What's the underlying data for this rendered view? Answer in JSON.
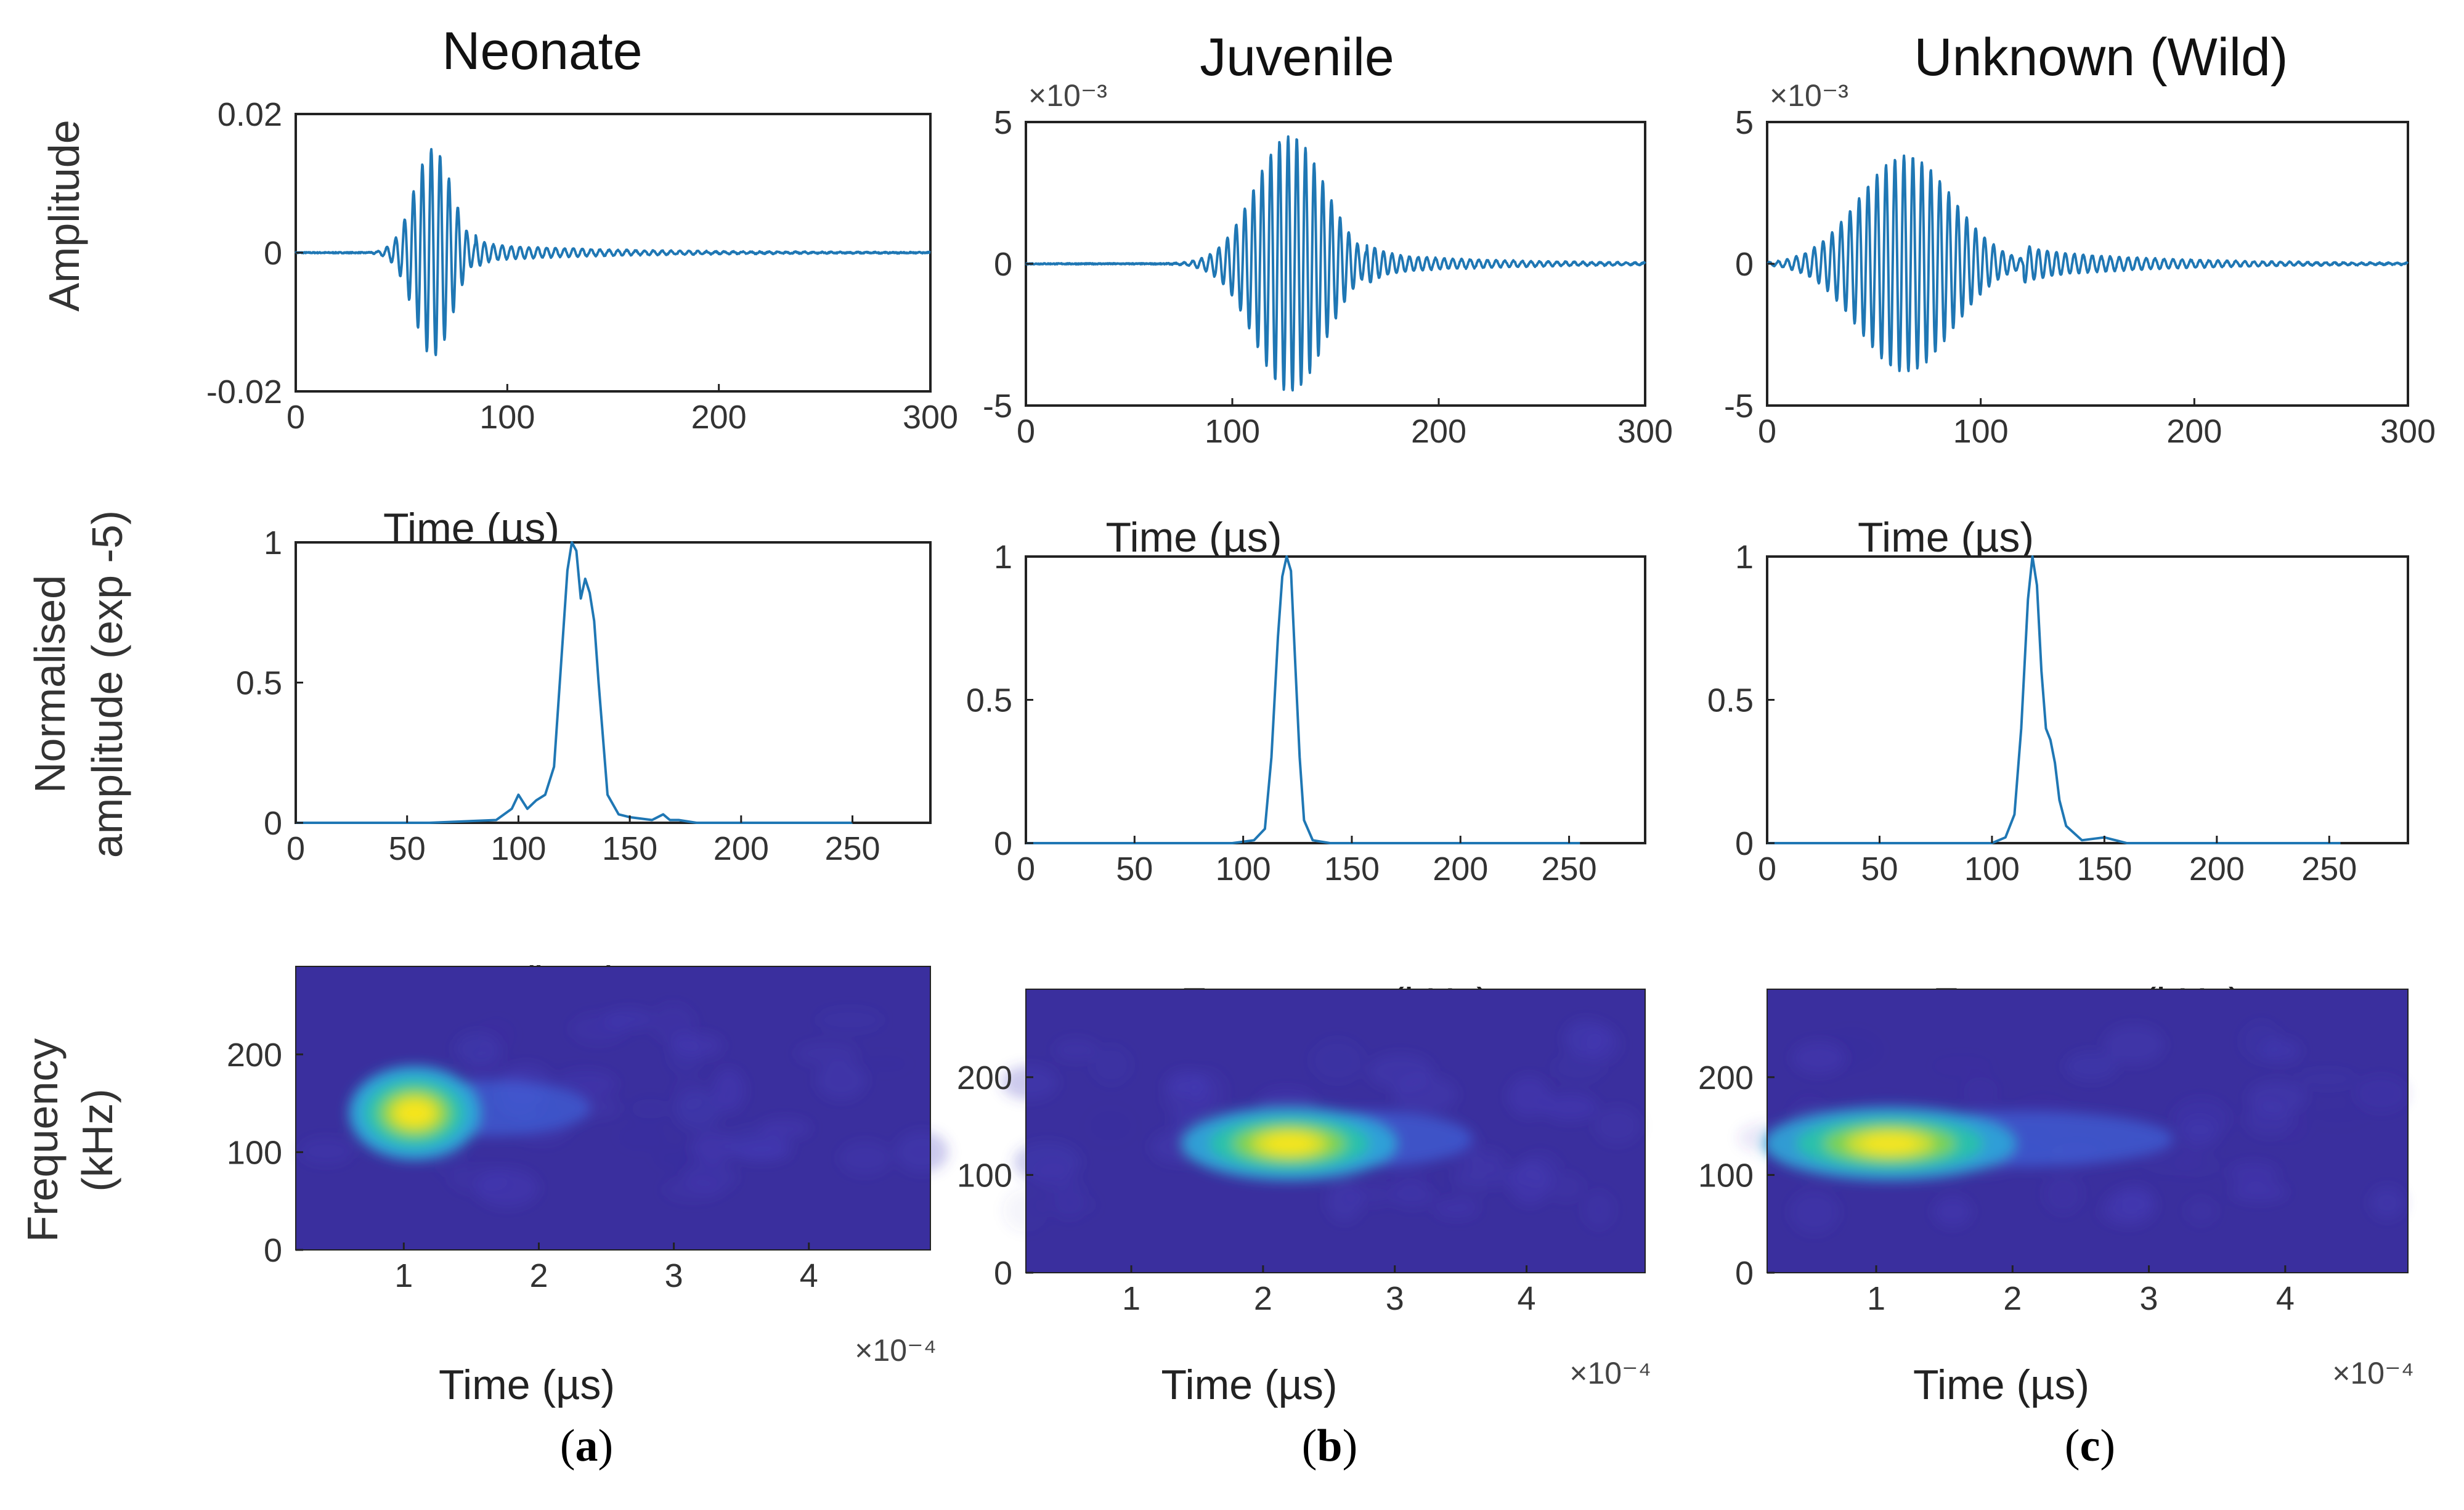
{
  "columns": [
    {
      "title": "Neonate",
      "label": "a"
    },
    {
      "title": "Juvenile",
      "label": "b"
    },
    {
      "title": "Unknown (Wild)",
      "label": "c"
    }
  ],
  "row_labels": {
    "amplitude": "Amplitude",
    "spectrum_line1": "Normalised",
    "spectrum_line2": "amplitude (exp -5)",
    "spectrogram_line1": "Frequency",
    "spectrogram_line2": "(kHz)"
  },
  "colors": {
    "trace": "#1f77b4",
    "heat_bg": "#3a2f9e",
    "heat_hot": "#f7e51f"
  },
  "chart_data": [
    {
      "type": "line",
      "column": 0,
      "title": "Neonate",
      "xlabel": "Time (µs)",
      "ylabel": "Amplitude",
      "xlim": [
        0,
        300
      ],
      "ylim": [
        -0.02,
        0.02
      ],
      "xticks": [
        0,
        100,
        200,
        300
      ],
      "yticks": [
        -0.02,
        0,
        0.02
      ],
      "ytick_labels": [
        "-0.02",
        "0",
        "0.02"
      ],
      "y_exponent": "",
      "signal": {
        "center": 65,
        "sigma": 9,
        "peak": 0.015,
        "decay_start": 85,
        "decay_amp": 0.0012,
        "period": 4.2
      }
    },
    {
      "type": "line",
      "column": 1,
      "title": "Juvenile",
      "xlabel": "Time (µs)",
      "ylabel": "Amplitude",
      "xlim": [
        0,
        300
      ],
      "ylim": [
        -5,
        5
      ],
      "xticks": [
        0,
        100,
        200,
        300
      ],
      "yticks": [
        -5,
        0,
        5
      ],
      "ytick_labels": [
        "-5",
        "0",
        "5"
      ],
      "y_exponent": "×10⁻³",
      "signal": {
        "center": 128,
        "sigma": 17,
        "peak": 4.5,
        "decay_start": 165,
        "decay_amp": 0.35,
        "period": 4.2
      }
    },
    {
      "type": "line",
      "column": 2,
      "title": "Unknown (Wild)",
      "xlabel": "Time (µs)",
      "ylabel": "Amplitude",
      "xlim": [
        0,
        300
      ],
      "ylim": [
        -5,
        5
      ],
      "xticks": [
        0,
        100,
        200,
        300
      ],
      "yticks": [
        -5,
        0,
        5
      ],
      "ytick_labels": [
        "-5",
        "0",
        "5"
      ],
      "y_exponent": "×10⁻³",
      "signal": {
        "center": 65,
        "sigma": 22,
        "peak": 3.8,
        "decay_start": 120,
        "decay_amp": 0.5,
        "period": 4.2
      }
    },
    {
      "type": "line",
      "column": 0,
      "xlabel": "Frequency (kHz)",
      "ylabel": "Normalised amplitude (exp -5)",
      "xlim": [
        0,
        285
      ],
      "ylim": [
        0,
        1
      ],
      "xticks": [
        0,
        50,
        100,
        150,
        200,
        250
      ],
      "yticks": [
        0,
        0.5,
        1
      ],
      "ytick_labels": [
        "0",
        "0.5",
        "1"
      ],
      "x": [
        0,
        60,
        90,
        97,
        100,
        104,
        108,
        112,
        116,
        119,
        122,
        124,
        126,
        128,
        130,
        132,
        134,
        136,
        140,
        145,
        150,
        160,
        165,
        168,
        172,
        180,
        220,
        250
      ],
      "y": [
        0,
        0,
        0.01,
        0.05,
        0.1,
        0.05,
        0.08,
        0.1,
        0.2,
        0.55,
        0.9,
        1.0,
        0.97,
        0.8,
        0.87,
        0.82,
        0.72,
        0.5,
        0.1,
        0.03,
        0.02,
        0.01,
        0.03,
        0.01,
        0.01,
        0,
        0,
        0
      ]
    },
    {
      "type": "line",
      "column": 1,
      "xlabel": "Frequency (kHz)",
      "ylabel": "Normalised amplitude (exp -5)",
      "xlim": [
        0,
        285
      ],
      "ylim": [
        0,
        1
      ],
      "xticks": [
        0,
        50,
        100,
        150,
        200,
        250
      ],
      "yticks": [
        0,
        0.5,
        1
      ],
      "ytick_labels": [
        "0",
        "0.5",
        "1"
      ],
      "x": [
        0,
        95,
        105,
        110,
        113,
        116,
        118,
        120,
        122,
        124,
        126,
        128,
        132,
        140,
        200,
        255
      ],
      "y": [
        0,
        0,
        0.01,
        0.05,
        0.3,
        0.72,
        0.93,
        1.0,
        0.95,
        0.62,
        0.3,
        0.08,
        0.01,
        0,
        0,
        0
      ]
    },
    {
      "type": "line",
      "column": 2,
      "xlabel": "Frequency (kHz)",
      "ylabel": "Normalised amplitude (exp -5)",
      "xlim": [
        0,
        285
      ],
      "ylim": [
        0,
        1
      ],
      "xticks": [
        0,
        50,
        100,
        150,
        200,
        250
      ],
      "yticks": [
        0,
        0.5,
        1
      ],
      "ytick_labels": [
        "0",
        "0.5",
        "1"
      ],
      "x": [
        0,
        100,
        106,
        110,
        113,
        116,
        118,
        120,
        122,
        124,
        126,
        128,
        130,
        133,
        140,
        150,
        155,
        160,
        200,
        255
      ],
      "y": [
        0,
        0,
        0.02,
        0.1,
        0.4,
        0.85,
        1.0,
        0.9,
        0.6,
        0.4,
        0.36,
        0.28,
        0.15,
        0.06,
        0.01,
        0.02,
        0.01,
        0,
        0,
        0
      ]
    },
    {
      "type": "heatmap",
      "column": 0,
      "xlabel": "Time (µs)",
      "ylabel": "Frequency (kHz)",
      "xlim": [
        0.2,
        4.9
      ],
      "ylim": [
        0,
        290
      ],
      "xticks": [
        1,
        2,
        3,
        4
      ],
      "yticks": [
        0,
        100,
        200
      ],
      "x_exponent": "×10⁻⁴",
      "hotspot": {
        "t": 1.08,
        "f": 140,
        "intensity": 1.0,
        "spread_t": 0.2,
        "spread_f": 17,
        "tail_to": 2.2
      }
    },
    {
      "type": "heatmap",
      "column": 1,
      "xlabel": "Time (µs)",
      "ylabel": "Frequency (kHz)",
      "xlim": [
        0.2,
        4.9
      ],
      "ylim": [
        0,
        290
      ],
      "xticks": [
        1,
        2,
        3,
        4
      ],
      "yticks": [
        0,
        100,
        200
      ],
      "x_exponent": "×10⁻⁴",
      "hotspot": {
        "t": 2.2,
        "f": 132,
        "intensity": 0.95,
        "spread_t": 0.35,
        "spread_f": 13,
        "tail_to": 3.4
      }
    },
    {
      "type": "heatmap",
      "column": 2,
      "xlabel": "Time (µs)",
      "ylabel": "Frequency (kHz)",
      "xlim": [
        0.2,
        4.9
      ],
      "ylim": [
        0,
        290
      ],
      "xticks": [
        1,
        2,
        3,
        4
      ],
      "yticks": [
        0,
        100,
        200
      ],
      "x_exponent": "×10⁻⁴",
      "hotspot": {
        "t": 1.1,
        "f": 132,
        "intensity": 0.92,
        "spread_t": 0.4,
        "spread_f": 13,
        "tail_to": 3.0
      }
    }
  ]
}
